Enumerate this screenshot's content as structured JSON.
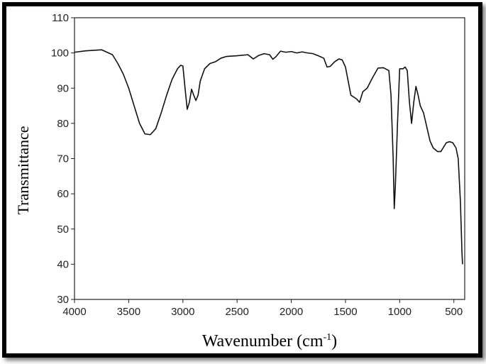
{
  "chart_data": {
    "type": "line",
    "x_label": "Wavenumber (cm",
    "x_label_superscript": "-1",
    "x_label_end": ")",
    "y_label": "Transmittance",
    "xlim": [
      4000,
      400
    ],
    "ylim": [
      30,
      110
    ],
    "xticks": [
      4000,
      3500,
      3000,
      2500,
      2000,
      1500,
      1000,
      500
    ],
    "yticks": [
      30,
      40,
      50,
      60,
      70,
      80,
      90,
      100,
      110
    ],
    "series": [
      {
        "color": "#111111",
        "x": [
          4000,
          3900,
          3800,
          3750,
          3700,
          3650,
          3600,
          3550,
          3500,
          3450,
          3400,
          3350,
          3300,
          3250,
          3200,
          3150,
          3100,
          3050,
          3020,
          3000,
          2980,
          2960,
          2940,
          2920,
          2900,
          2880,
          2860,
          2840,
          2800,
          2750,
          2700,
          2650,
          2600,
          2500,
          2400,
          2350,
          2300,
          2250,
          2200,
          2170,
          2140,
          2100,
          2050,
          2000,
          1950,
          1900,
          1850,
          1800,
          1750,
          1700,
          1670,
          1640,
          1600,
          1560,
          1530,
          1500,
          1450,
          1400,
          1370,
          1340,
          1300,
          1250,
          1200,
          1150,
          1100,
          1080,
          1060,
          1050,
          1040,
          1020,
          1000,
          970,
          950,
          930,
          910,
          890,
          870,
          850,
          830,
          810,
          780,
          750,
          720,
          690,
          650,
          620,
          600,
          570,
          540,
          510,
          480,
          460,
          440,
          425,
          420
        ],
        "y": [
          100.2,
          100.6,
          100.8,
          100.9,
          100.2,
          99.5,
          97,
          94,
          90,
          85,
          80,
          77,
          76.8,
          78.5,
          83,
          88,
          92.5,
          95.5,
          96.5,
          96.3,
          90,
          84,
          86,
          89.7,
          88,
          86.5,
          88,
          92,
          95.5,
          97,
          97.5,
          98.5,
          99,
          99.2,
          99.5,
          98.3,
          99.3,
          99.8,
          99.5,
          98.2,
          99,
          100.5,
          100.2,
          100.4,
          100,
          100.3,
          100,
          99.8,
          99.2,
          98.5,
          96,
          96.2,
          97.5,
          98.3,
          98,
          96,
          88,
          87,
          86,
          89,
          90,
          93,
          95.7,
          95.8,
          95,
          88,
          70,
          55.8,
          62,
          80,
          95.5,
          95.5,
          96,
          95,
          86,
          80,
          86,
          90.5,
          88,
          85,
          83,
          79,
          75,
          73,
          72,
          72,
          73,
          74.5,
          74.8,
          74.5,
          73,
          70,
          58,
          43,
          40
        ]
      }
    ]
  }
}
